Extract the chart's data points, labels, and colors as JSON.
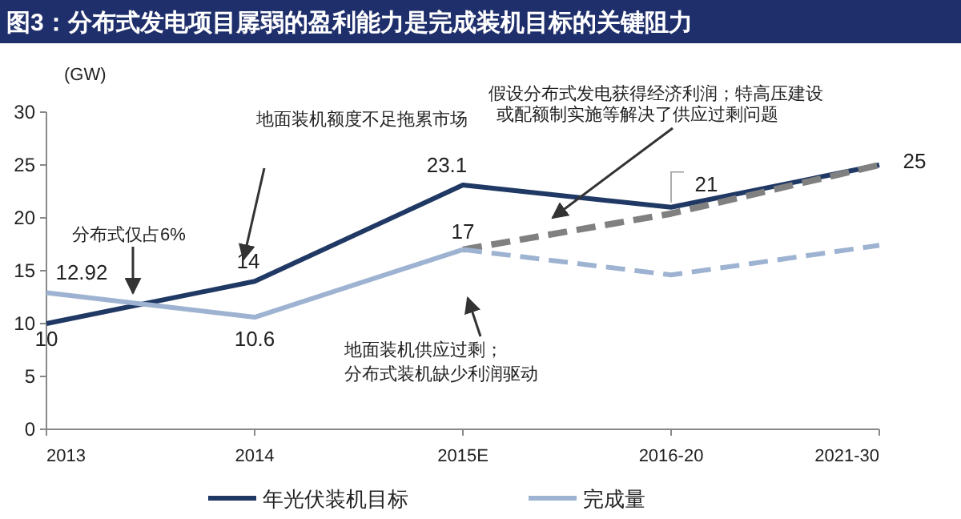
{
  "chart_data": {
    "type": "line",
    "title": "图3：分布式发电项目孱弱的盈利能力是完成装机目标的关键阻力",
    "ylabel": "(GW)",
    "categories": [
      "2013",
      "2014",
      "2015E",
      "2016-20",
      "2021-30"
    ],
    "series": [
      {
        "name": "年光伏装机目标",
        "color": "#1f3864",
        "values": [
          10,
          14,
          23.1,
          21,
          25
        ],
        "value_labels": [
          "10",
          "14",
          "23.1",
          "21",
          "25"
        ]
      },
      {
        "color": "#808080",
        "values": [
          null,
          null,
          17,
          20.4,
          25
        ],
        "line_style": "dashed"
      },
      {
        "name": "完成量",
        "color": "#9db3d1",
        "values": [
          12.92,
          10.6,
          17,
          null,
          null
        ],
        "value_labels": [
          "12.92",
          "10.6",
          "17",
          null,
          null
        ]
      },
      {
        "color": "#9db3d1",
        "values": [
          null,
          null,
          17,
          14.6,
          17.4
        ],
        "line_style": "dashed"
      }
    ],
    "ylim": [
      0,
      30
    ],
    "yticks": [
      0,
      5,
      10,
      15,
      20,
      25,
      30
    ],
    "grid": false,
    "legend": "bottom",
    "annotations": [
      "地面装机额度不足拖累市场",
      "分布式仅占6%",
      "地面装机供应过剩；",
      "分布式装机缺少利润驱动",
      "假设分布式发电获得经济利润；特高压建设",
      "或配额制实施等解决了供应过剩问题"
    ]
  }
}
